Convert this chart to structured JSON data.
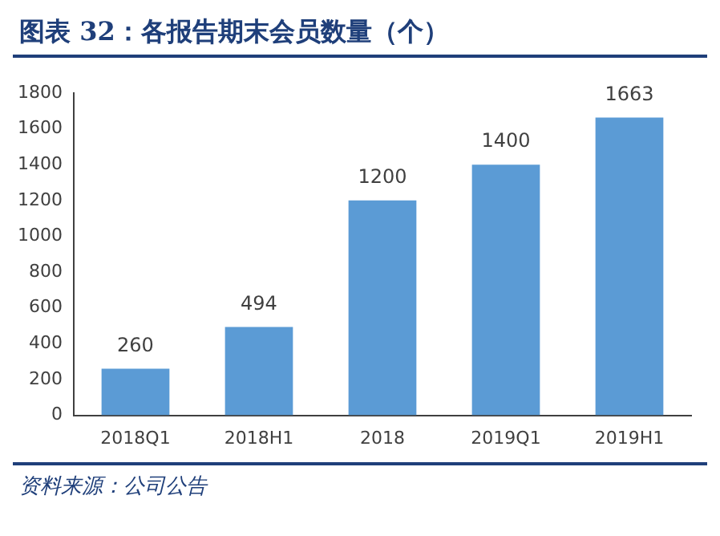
{
  "chart_data": {
    "type": "bar",
    "title": "图表 32：各报告期末会员数量（个）",
    "categories": [
      "2018Q1",
      "2018H1",
      "2018",
      "2019Q1",
      "2019H1"
    ],
    "values": [
      260,
      494,
      1200,
      1400,
      1663
    ],
    "color": "#5b9bd5",
    "ylim": [
      0,
      1800
    ],
    "yticks": [
      0,
      200,
      400,
      600,
      800,
      1000,
      1200,
      1400,
      1600,
      1800
    ],
    "grid": false,
    "data_labels": true,
    "legend": false,
    "annotations": [
      "资料来源：公司公告"
    ]
  }
}
